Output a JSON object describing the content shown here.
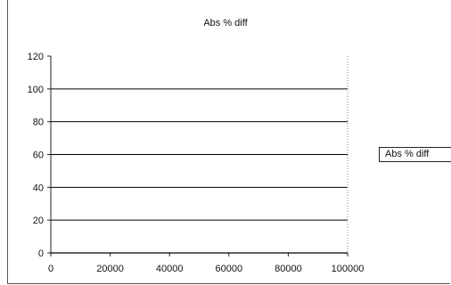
{
  "chart_data": {
    "type": "line",
    "title": "Abs % diff",
    "legend": {
      "position": "right",
      "entries": [
        "Abs % diff"
      ]
    },
    "xlim": [
      0,
      100000
    ],
    "ylim": [
      0,
      120
    ],
    "xticks": [
      "0",
      "20000",
      "40000",
      "60000",
      "80000",
      "100000"
    ],
    "yticks": [
      "0",
      "20",
      "40",
      "60",
      "80",
      "100",
      "120"
    ],
    "grid": true,
    "series": [
      {
        "name": "Abs % diff",
        "x": [
          0,
          100000
        ],
        "y": [
          0,
          0
        ]
      }
    ],
    "colors": {
      "axis": "#222222",
      "grid": "#000000",
      "series": "#000000"
    }
  }
}
